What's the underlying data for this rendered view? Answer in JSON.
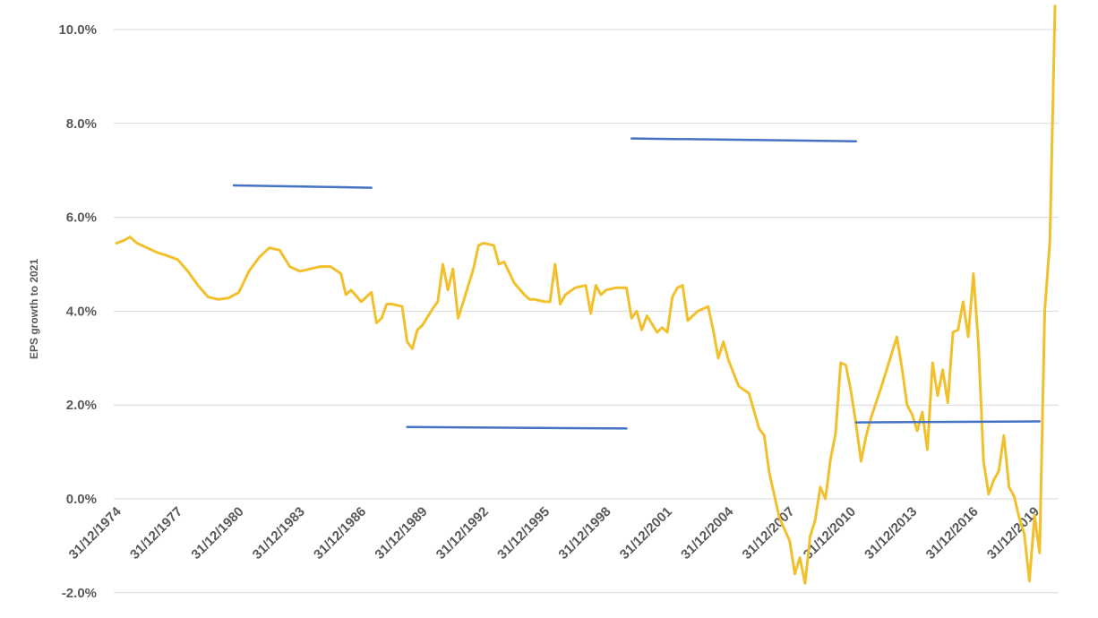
{
  "chart_data": {
    "type": "line",
    "title": "",
    "xlabel": "",
    "ylabel": "EPS growth to 2021",
    "xlim": [
      "1974-12-31",
      "2021-03-31"
    ],
    "ylim": [
      -2.0,
      10.0
    ],
    "y_ticks": [
      "-2.0%",
      "0.0%",
      "2.0%",
      "4.0%",
      "6.0%",
      "8.0%",
      "10.0%"
    ],
    "y_tick_values": [
      -2,
      0,
      2,
      4,
      6,
      8,
      10
    ],
    "x_ticks": [
      "31/12/1974",
      "31/12/1977",
      "31/12/1980",
      "31/12/1983",
      "31/12/1986",
      "31/12/1989",
      "31/12/1992",
      "31/12/1995",
      "31/12/1998",
      "31/12/2001",
      "31/12/2004",
      "31/12/2007",
      "31/12/2010",
      "31/12/2013",
      "31/12/2016",
      "31/12/2019"
    ],
    "grid": true,
    "legend": "none",
    "series": [
      {
        "color": "#f2c02c",
        "points": [
          [
            "1974-12-31",
            5.45
          ],
          [
            "1975-04-30",
            5.5
          ],
          [
            "1975-08-31",
            5.58
          ],
          [
            "1975-12-31",
            5.45
          ],
          [
            "1976-06-30",
            5.35
          ],
          [
            "1976-12-31",
            5.25
          ],
          [
            "1977-06-30",
            5.18
          ],
          [
            "1977-12-31",
            5.1
          ],
          [
            "1978-06-30",
            4.85
          ],
          [
            "1978-12-31",
            4.55
          ],
          [
            "1979-06-30",
            4.3
          ],
          [
            "1979-12-31",
            4.25
          ],
          [
            "1980-06-30",
            4.28
          ],
          [
            "1980-12-31",
            4.4
          ],
          [
            "1981-06-30",
            4.85
          ],
          [
            "1981-12-31",
            5.15
          ],
          [
            "1982-06-30",
            5.35
          ],
          [
            "1982-12-31",
            5.3
          ],
          [
            "1983-06-30",
            4.95
          ],
          [
            "1983-12-31",
            4.85
          ],
          [
            "1984-06-30",
            4.9
          ],
          [
            "1984-12-31",
            4.95
          ],
          [
            "1985-06-30",
            4.95
          ],
          [
            "1985-12-31",
            4.8
          ],
          [
            "1986-03-31",
            4.35
          ],
          [
            "1986-06-30",
            4.45
          ],
          [
            "1986-12-31",
            4.2
          ],
          [
            "1987-06-30",
            4.4
          ],
          [
            "1987-09-30",
            3.75
          ],
          [
            "1987-12-31",
            3.85
          ],
          [
            "1988-03-31",
            4.15
          ],
          [
            "1988-06-30",
            4.15
          ],
          [
            "1988-12-31",
            4.1
          ],
          [
            "1989-03-31",
            3.35
          ],
          [
            "1989-06-30",
            3.2
          ],
          [
            "1989-09-30",
            3.6
          ],
          [
            "1989-12-31",
            3.7
          ],
          [
            "1990-06-30",
            4.05
          ],
          [
            "1990-09-30",
            4.2
          ],
          [
            "1990-12-31",
            5.0
          ],
          [
            "1991-03-31",
            4.45
          ],
          [
            "1991-06-30",
            4.9
          ],
          [
            "1991-09-30",
            3.85
          ],
          [
            "1991-12-31",
            4.2
          ],
          [
            "1992-06-30",
            4.9
          ],
          [
            "1992-09-30",
            5.4
          ],
          [
            "1992-12-31",
            5.45
          ],
          [
            "1993-06-30",
            5.4
          ],
          [
            "1993-09-30",
            5.0
          ],
          [
            "1993-12-31",
            5.05
          ],
          [
            "1994-06-30",
            4.6
          ],
          [
            "1994-12-31",
            4.35
          ],
          [
            "1995-03-31",
            4.25
          ],
          [
            "1995-06-30",
            4.25
          ],
          [
            "1995-12-31",
            4.2
          ],
          [
            "1996-03-31",
            4.2
          ],
          [
            "1996-06-30",
            5.0
          ],
          [
            "1996-09-30",
            4.15
          ],
          [
            "1996-12-31",
            4.35
          ],
          [
            "1997-06-30",
            4.5
          ],
          [
            "1997-12-31",
            4.55
          ],
          [
            "1998-03-31",
            3.95
          ],
          [
            "1998-06-30",
            4.55
          ],
          [
            "1998-09-30",
            4.35
          ],
          [
            "1998-12-31",
            4.45
          ],
          [
            "1999-06-30",
            4.5
          ],
          [
            "1999-12-31",
            4.5
          ],
          [
            "2000-03-31",
            3.85
          ],
          [
            "2000-06-30",
            4.0
          ],
          [
            "2000-09-30",
            3.6
          ],
          [
            "2000-12-31",
            3.9
          ],
          [
            "2001-06-30",
            3.55
          ],
          [
            "2001-09-30",
            3.65
          ],
          [
            "2001-12-31",
            3.55
          ],
          [
            "2002-03-31",
            4.3
          ],
          [
            "2002-06-30",
            4.5
          ],
          [
            "2002-09-30",
            4.55
          ],
          [
            "2002-12-31",
            3.8
          ],
          [
            "2003-06-30",
            4.0
          ],
          [
            "2003-12-31",
            4.1
          ],
          [
            "2004-03-31",
            3.6
          ],
          [
            "2004-06-30",
            3.0
          ],
          [
            "2004-09-30",
            3.35
          ],
          [
            "2004-12-31",
            2.95
          ],
          [
            "2005-06-30",
            2.4
          ],
          [
            "2005-12-31",
            2.25
          ],
          [
            "2006-06-30",
            1.5
          ],
          [
            "2006-09-30",
            1.35
          ],
          [
            "2006-12-31",
            0.55
          ],
          [
            "2007-06-30",
            -0.4
          ],
          [
            "2007-12-31",
            -0.9
          ],
          [
            "2008-03-31",
            -1.6
          ],
          [
            "2008-06-30",
            -1.25
          ],
          [
            "2008-09-30",
            -1.8
          ],
          [
            "2008-12-31",
            -0.8
          ],
          [
            "2009-03-31",
            -0.45
          ],
          [
            "2009-06-30",
            0.25
          ],
          [
            "2009-09-30",
            0.0
          ],
          [
            "2009-12-31",
            0.85
          ],
          [
            "2010-03-31",
            1.4
          ],
          [
            "2010-06-30",
            2.9
          ],
          [
            "2010-09-30",
            2.85
          ],
          [
            "2010-12-31",
            2.3
          ],
          [
            "2011-03-31",
            1.6
          ],
          [
            "2011-06-30",
            0.8
          ],
          [
            "2011-09-30",
            1.35
          ],
          [
            "2011-12-31",
            1.75
          ],
          [
            "2012-06-30",
            2.4
          ],
          [
            "2012-12-31",
            3.1
          ],
          [
            "2013-03-31",
            3.45
          ],
          [
            "2013-06-30",
            2.8
          ],
          [
            "2013-09-30",
            2.0
          ],
          [
            "2013-12-31",
            1.8
          ],
          [
            "2014-03-31",
            1.45
          ],
          [
            "2014-06-30",
            1.85
          ],
          [
            "2014-09-30",
            1.05
          ],
          [
            "2014-12-31",
            2.9
          ],
          [
            "2015-03-31",
            2.2
          ],
          [
            "2015-06-30",
            2.75
          ],
          [
            "2015-09-30",
            2.05
          ],
          [
            "2015-12-31",
            3.55
          ],
          [
            "2016-03-31",
            3.6
          ],
          [
            "2016-06-30",
            4.2
          ],
          [
            "2016-09-30",
            3.45
          ],
          [
            "2016-12-31",
            4.8
          ],
          [
            "2017-03-31",
            3.3
          ],
          [
            "2017-06-30",
            0.8
          ],
          [
            "2017-09-30",
            0.1
          ],
          [
            "2017-12-31",
            0.4
          ],
          [
            "2018-03-31",
            0.6
          ],
          [
            "2018-06-30",
            1.35
          ],
          [
            "2018-09-30",
            0.25
          ],
          [
            "2018-12-31",
            0.05
          ],
          [
            "2019-03-31",
            -0.4
          ],
          [
            "2019-06-30",
            -0.75
          ],
          [
            "2019-09-30",
            -1.75
          ],
          [
            "2019-12-31",
            -0.35
          ],
          [
            "2020-03-31",
            -1.15
          ],
          [
            "2020-06-30",
            4.0
          ],
          [
            "2020-09-30",
            5.5
          ],
          [
            "2020-12-31",
            10.5
          ]
        ]
      },
      {
        "color": "#4472c4",
        "points": [
          [
            "1980-09-30",
            6.68
          ],
          [
            "1987-06-30",
            6.63
          ]
        ]
      },
      {
        "color": "#4472c4",
        "points": [
          [
            "1989-03-31",
            1.53
          ],
          [
            "1999-12-31",
            1.5
          ]
        ]
      },
      {
        "color": "#4472c4",
        "points": [
          [
            "2000-03-31",
            7.68
          ],
          [
            "2011-03-31",
            7.62
          ]
        ]
      },
      {
        "color": "#4472c4",
        "points": [
          [
            "2011-03-31",
            1.63
          ],
          [
            "2020-03-31",
            1.65
          ]
        ]
      }
    ]
  }
}
